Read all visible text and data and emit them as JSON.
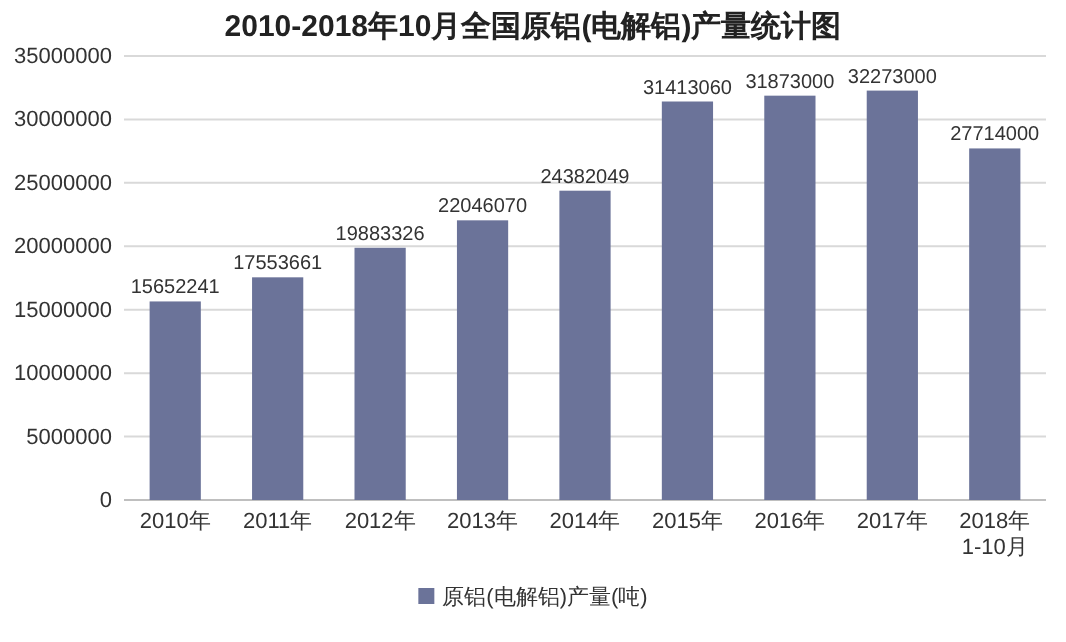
{
  "chart_data": {
    "type": "bar",
    "title": "2010-2018年10月全国原铝(电解铝)产量统计图",
    "categories": [
      "2010年",
      "2011年",
      "2012年",
      "2013年",
      "2014年",
      "2015年",
      "2016年",
      "2017年",
      "2018年\n1-10月"
    ],
    "series": [
      {
        "name": "原铝(电解铝)产量(吨)",
        "color": "#6b7399",
        "values": [
          15652241,
          17553661,
          19883326,
          22046070,
          24382049,
          31413060,
          31873000,
          32273000,
          27714000
        ]
      }
    ],
    "ylim": [
      0,
      35000000
    ],
    "yticks": [
      0,
      5000000,
      10000000,
      15000000,
      20000000,
      25000000,
      30000000,
      35000000
    ],
    "grid": "y",
    "legend": "bottom",
    "data_labels": true
  }
}
